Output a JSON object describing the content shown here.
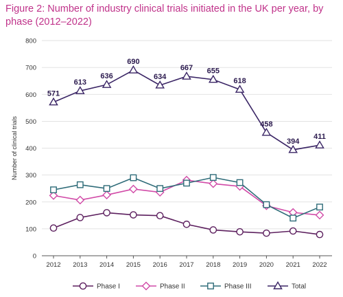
{
  "figure": {
    "title": "Figure 2: Number of industry clinical trials initiated in the UK per year, by phase (2012–2022)"
  },
  "chart_data": {
    "type": "line",
    "title": "Figure 2: Number of industry clinical trials initiated in the UK per year, by phase (2012–2022)",
    "xlabel": "",
    "ylabel": "Number of clinical trials",
    "x": [
      "2012",
      "2013",
      "2014",
      "2015",
      "2016",
      "2017",
      "2018",
      "2019",
      "2020",
      "2021",
      "2022"
    ],
    "ylim": [
      0,
      800
    ],
    "yticks": [
      0,
      100,
      200,
      300,
      400,
      500,
      600,
      700,
      800
    ],
    "grid": "horizontal",
    "legend_position": "bottom",
    "series": [
      {
        "name": "Phase I",
        "marker": "circle",
        "color": "#5c1f5e",
        "values": [
          103,
          142,
          160,
          152,
          149,
          117,
          96,
          89,
          84,
          92,
          79
        ]
      },
      {
        "name": "Phase II",
        "marker": "diamond",
        "color": "#d14aa7",
        "values": [
          224,
          207,
          226,
          248,
          236,
          281,
          268,
          258,
          186,
          161,
          151
        ]
      },
      {
        "name": "Phase III",
        "marker": "square",
        "color": "#2e6b78",
        "values": [
          245,
          264,
          250,
          290,
          250,
          270,
          291,
          272,
          190,
          140,
          181
        ]
      },
      {
        "name": "Total",
        "marker": "triangle",
        "color": "#3a2565",
        "values": [
          571,
          613,
          636,
          690,
          634,
          667,
          655,
          618,
          458,
          394,
          411
        ],
        "data_labels": [
          "571",
          "613",
          "636",
          "690",
          "634",
          "667",
          "655",
          "618",
          "458",
          "394",
          "411"
        ]
      }
    ]
  }
}
